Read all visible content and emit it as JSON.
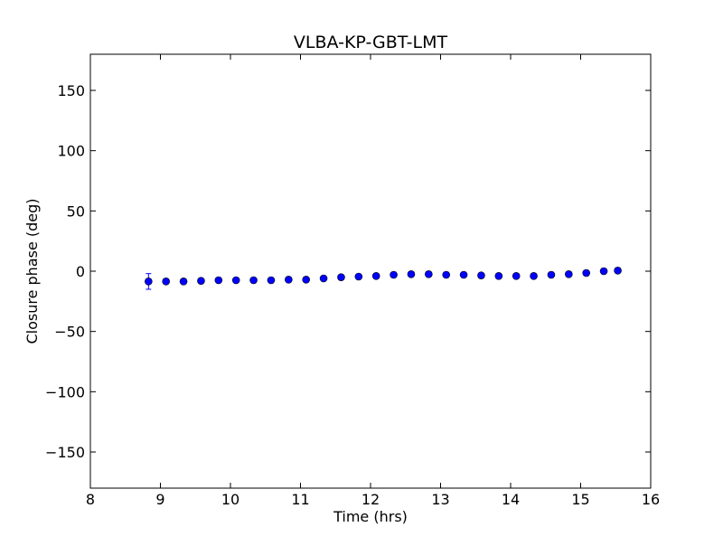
{
  "chart_data": {
    "type": "scatter",
    "title": "VLBA-KP-GBT-LMT",
    "xlabel": "Time (hrs)",
    "ylabel": "Closure phase (deg)",
    "xlim": [
      8,
      16
    ],
    "ylim": [
      -180,
      180
    ],
    "xticks": [
      8,
      9,
      10,
      11,
      12,
      13,
      14,
      15,
      16
    ],
    "yticks": [
      -150,
      -100,
      -50,
      0,
      50,
      100,
      150
    ],
    "ytick_labels": [
      "−150",
      "−100",
      "−50",
      "0",
      "50",
      "100",
      "150"
    ],
    "xtick_labels": [
      "8",
      "9",
      "10",
      "11",
      "12",
      "13",
      "14",
      "15",
      "16"
    ],
    "grid": false,
    "marker_color": "#0000ff",
    "series": [
      {
        "name": "closure phase",
        "x": [
          8.83,
          9.08,
          9.33,
          9.58,
          9.83,
          10.08,
          10.33,
          10.58,
          10.83,
          11.08,
          11.33,
          11.58,
          11.83,
          12.08,
          12.33,
          12.58,
          12.83,
          13.08,
          13.33,
          13.58,
          13.83,
          14.08,
          14.33,
          14.58,
          14.83,
          15.08,
          15.33,
          15.53
        ],
        "y": [
          -8.5,
          -8.5,
          -8.5,
          -8.0,
          -7.5,
          -7.5,
          -7.5,
          -7.5,
          -7.0,
          -7.0,
          -6.0,
          -5.0,
          -4.5,
          -4.0,
          -3.0,
          -2.5,
          -2.5,
          -3.0,
          -3.0,
          -3.5,
          -4.0,
          -4.0,
          -4.0,
          -3.0,
          -2.5,
          -1.5,
          0.0,
          0.5
        ],
        "yerr": [
          6.5,
          2.0,
          2.0,
          2.0,
          2.0,
          2.0,
          2.0,
          2.0,
          2.0,
          2.0,
          2.0,
          2.0,
          2.0,
          2.0,
          2.0,
          2.0,
          2.0,
          2.0,
          2.0,
          2.0,
          2.0,
          2.0,
          2.0,
          2.0,
          2.0,
          2.0,
          2.0,
          2.0
        ]
      }
    ]
  }
}
